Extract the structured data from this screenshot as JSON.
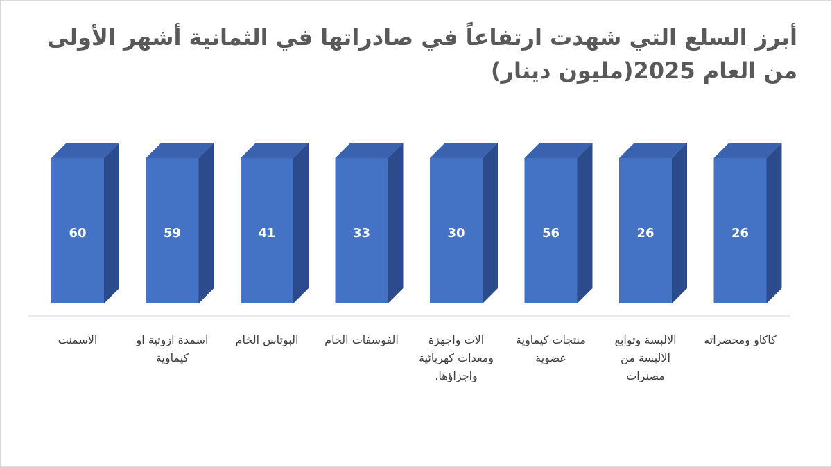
{
  "chart_data": {
    "type": "bar",
    "title": "أبرز السلع التي شهدت ارتفاعاً في صادراتها في الثمانية أشهر الأولى من العام 2025(مليون دينار)",
    "categories": [
      "الاسمنت",
      "اسمدة ازوتية او كيماوية",
      "البوتاس الخام",
      "الفوسفات الخام",
      "الات واجهزة ومعدات كهربائية واجزاؤها،",
      "منتجات كيماوية عضوية",
      "الالبسة وتوابع الالبسة من مصنرات",
      "كاكاو ومحضراته"
    ],
    "values": [
      60,
      59,
      41,
      33,
      30,
      56,
      26,
      26
    ],
    "value_labels": [
      "60",
      "59",
      "41",
      "33",
      "30",
      "56",
      "26",
      "26"
    ],
    "bar_color": "#4472c4",
    "bar_side_color": "#2b4b8c",
    "bar_top_color": "#3a62ae",
    "data_labels": "inside",
    "gridlines": false,
    "legend": "none"
  }
}
